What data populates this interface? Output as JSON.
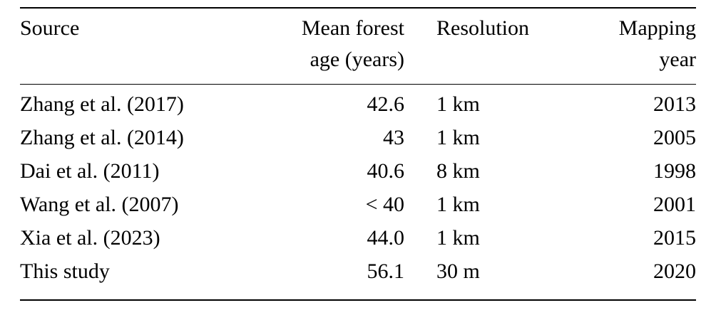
{
  "table": {
    "columns": [
      {
        "line1": "Source",
        "line2": "",
        "align": "left"
      },
      {
        "line1": "Mean forest",
        "line2": "age (years)",
        "align": "right"
      },
      {
        "line1": "Resolution",
        "line2": "",
        "align": "left"
      },
      {
        "line1": "Mapping",
        "line2": "year",
        "align": "right"
      }
    ],
    "rows": [
      {
        "source": "Zhang et al. (2017)",
        "age": "42.6",
        "resolution": "1 km",
        "year": "2013"
      },
      {
        "source": "Zhang et al. (2014)",
        "age": "43",
        "resolution": "1 km",
        "year": "2005"
      },
      {
        "source": "Dai et al. (2011)",
        "age": "40.6",
        "resolution": "8 km",
        "year": "1998"
      },
      {
        "source": "Wang et al. (2007)",
        "age": "< 40",
        "resolution": "1 km",
        "year": "2001"
      },
      {
        "source": "Xia et al. (2023)",
        "age": "44.0",
        "resolution": "1 km",
        "year": "2015"
      },
      {
        "source": "This study",
        "age": "56.1",
        "resolution": "30 m",
        "year": "2020"
      }
    ]
  }
}
